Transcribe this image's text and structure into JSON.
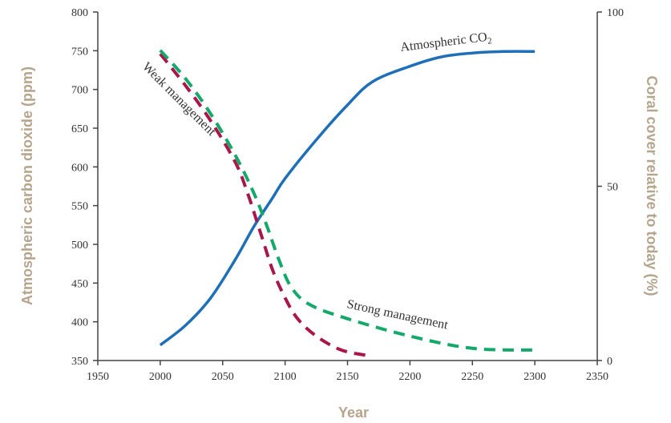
{
  "chart_data": {
    "type": "line",
    "x_axis": {
      "label": "Year",
      "range": [
        1950,
        2350
      ],
      "ticks": [
        1950,
        2000,
        2050,
        2100,
        2150,
        2200,
        2250,
        2300,
        2350
      ]
    },
    "y_left": {
      "label": "Atmospheric carbon dioxide (ppm)",
      "range": [
        350,
        800
      ],
      "ticks": [
        350,
        400,
        450,
        500,
        550,
        600,
        650,
        700,
        750,
        800
      ]
    },
    "y_right": {
      "label": "Coral cover relative to today (%)",
      "range": [
        0,
        100
      ],
      "ticks": [
        0,
        50,
        100
      ]
    },
    "grid": false,
    "series": [
      {
        "name": "Atmospheric CO",
        "name_subscript": "2",
        "axis": "left",
        "style": "solid",
        "color": "#1f6fb8",
        "x": [
          2000,
          2020,
          2040,
          2060,
          2075,
          2090,
          2100,
          2125,
          2150,
          2170,
          2200,
          2225,
          2250,
          2275,
          2300
        ],
        "y": [
          370,
          395,
          430,
          480,
          523,
          560,
          585,
          635,
          680,
          710,
          730,
          742,
          747,
          749,
          749
        ]
      },
      {
        "name": "Weak management",
        "axis": "right",
        "style": "dashed",
        "color": "#a8174a",
        "x": [
          2000,
          2020,
          2040,
          2060,
          2070,
          2080,
          2090,
          2100,
          2110,
          2125,
          2145,
          2165
        ],
        "y": [
          88,
          79,
          69,
          57,
          48,
          37,
          26,
          18,
          12,
          7,
          3,
          1.5
        ]
      },
      {
        "name": "Strong management",
        "axis": "right",
        "style": "dashed",
        "color": "#14a86b",
        "x": [
          2000,
          2020,
          2040,
          2060,
          2075,
          2085,
          2095,
          2105,
          2120,
          2150,
          2200,
          2250,
          2300
        ],
        "y": [
          89,
          81,
          71,
          59,
          48,
          39,
          29,
          21,
          16,
          12,
          7,
          3.5,
          3
        ]
      }
    ]
  },
  "colors": {
    "axis_title": "#b6a48c",
    "axis_line": "#444444",
    "tick_text": "#333333"
  }
}
